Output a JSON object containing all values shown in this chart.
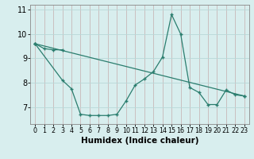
{
  "line1_x": [
    0,
    1,
    2,
    3
  ],
  "line1_y": [
    9.6,
    9.4,
    9.35,
    9.35
  ],
  "line2_x": [
    0,
    3,
    4,
    5,
    6,
    7,
    8,
    9,
    10,
    11,
    12,
    13,
    14,
    15,
    16,
    17,
    18,
    19,
    20,
    21,
    22,
    23
  ],
  "line2_y": [
    9.6,
    8.1,
    7.75,
    6.7,
    6.65,
    6.65,
    6.65,
    6.7,
    7.25,
    7.9,
    8.15,
    8.45,
    9.05,
    10.8,
    10.0,
    7.8,
    7.6,
    7.1,
    7.1,
    7.7,
    7.5,
    7.45
  ],
  "line3_x": [
    0,
    23
  ],
  "line3_y": [
    9.6,
    7.45
  ],
  "color": "#2a7d6e",
  "bg_color": "#d8eeee",
  "grid_color": "#b8d8d8",
  "xlabel": "Humidex (Indice chaleur)",
  "xlim": [
    -0.5,
    23.5
  ],
  "ylim": [
    6.3,
    11.2
  ],
  "yticks": [
    7,
    8,
    9,
    10,
    11
  ],
  "xticks": [
    0,
    1,
    2,
    3,
    4,
    5,
    6,
    7,
    8,
    9,
    10,
    11,
    12,
    13,
    14,
    15,
    16,
    17,
    18,
    19,
    20,
    21,
    22,
    23
  ],
  "xlabel_fontsize": 7.5,
  "ytick_fontsize": 7,
  "xtick_fontsize": 5.8
}
